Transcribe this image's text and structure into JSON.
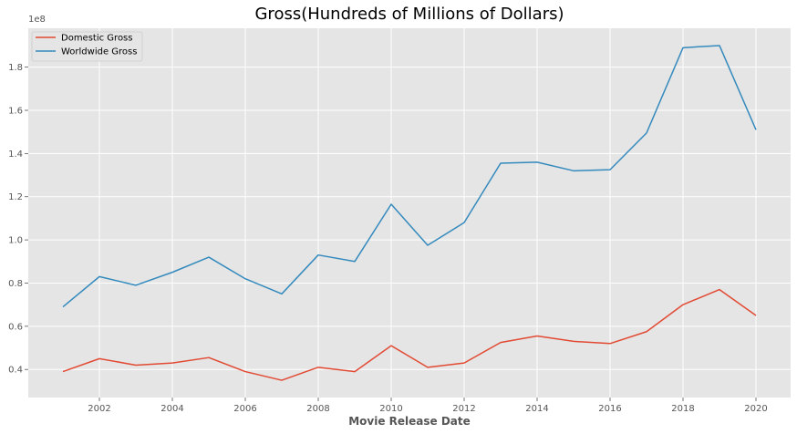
{
  "chart_data": {
    "type": "line",
    "title": "Gross(Hundreds of Millions of Dollars)",
    "xlabel": "Movie Release Date",
    "ylabel": "",
    "y_offset_label": "1e8",
    "x": [
      2001,
      2002,
      2003,
      2004,
      2005,
      2006,
      2007,
      2008,
      2009,
      2010,
      2011,
      2012,
      2013,
      2014,
      2015,
      2016,
      2017,
      2018,
      2019,
      2020
    ],
    "xlim": [
      2000.05,
      2020.95
    ],
    "ylim": [
      0.27,
      1.98
    ],
    "x_ticks": [
      2002,
      2004,
      2006,
      2008,
      2010,
      2012,
      2014,
      2016,
      2018,
      2020
    ],
    "y_ticks": [
      0.4,
      0.6,
      0.8,
      1.0,
      1.2,
      1.4,
      1.6,
      1.8
    ],
    "y_tick_labels": [
      "0.4",
      "0.6",
      "0.8",
      "1.0",
      "1.2",
      "1.4",
      "1.6",
      "1.8"
    ],
    "grid": true,
    "legend_position": "top-left",
    "series": [
      {
        "name": "Domestic Gross",
        "color": "#E24A33",
        "values": [
          0.39,
          0.45,
          0.42,
          0.43,
          0.455,
          0.39,
          0.35,
          0.41,
          0.39,
          0.51,
          0.41,
          0.43,
          0.525,
          0.555,
          0.53,
          0.52,
          0.575,
          0.7,
          0.77,
          0.65
        ]
      },
      {
        "name": "Worldwide Gross",
        "color": "#348ABD",
        "values": [
          0.69,
          0.83,
          0.79,
          0.85,
          0.92,
          0.82,
          0.75,
          0.93,
          0.9,
          1.165,
          0.975,
          1.08,
          1.355,
          1.36,
          1.32,
          1.325,
          1.495,
          1.89,
          1.9,
          1.51
        ]
      }
    ]
  }
}
